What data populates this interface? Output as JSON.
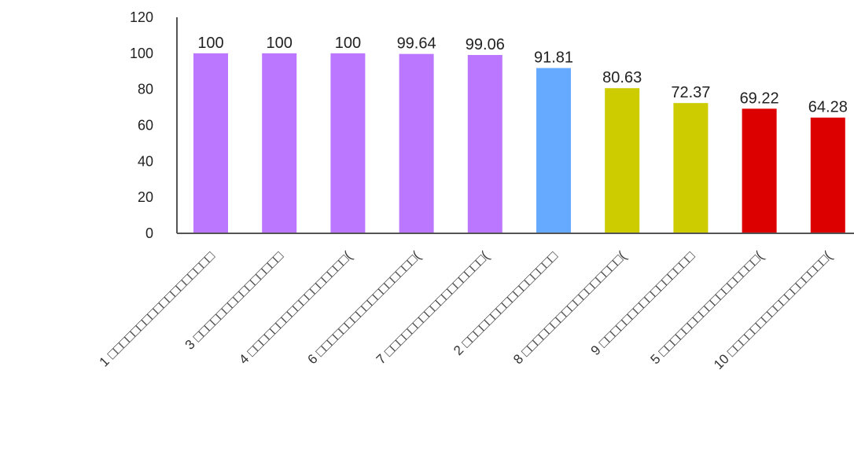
{
  "chart_data": {
    "type": "bar",
    "title": "",
    "xlabel": "",
    "ylabel": "",
    "ylim": [
      0,
      120
    ],
    "yticks": [
      0,
      20,
      40,
      60,
      80,
      100,
      120
    ],
    "grid": false,
    "legend": "none",
    "categories": [
      "1 □□□□□□□□□□□□□□□□□□",
      "3 □□□□□□□□□□□□□□□",
      "4 □□□□□□□□□□□□□□□□□(",
      "6 □□□□□□□□□□□□□□□□□(",
      "7 □□□□□□□□□□□□□□□□□(",
      "2 □□□□□□□□□□□□□□□□",
      "8 □□□□□□□□□□□□□□□□□(",
      "9 □□□□□□□□□□□□□□□□",
      "5 □□□□□□□□□□□□□□□□□(",
      "10 □□□□□□□□□□□□□□□□□("
    ],
    "values": [
      100,
      100,
      100,
      99.64,
      99.06,
      91.81,
      80.63,
      72.37,
      69.22,
      64.28
    ],
    "value_labels": [
      "100",
      "100",
      "100",
      "99.64",
      "99.06",
      "91.81",
      "80.63",
      "72.37",
      "69.22",
      "64.28"
    ],
    "colors": [
      "#bb77ff",
      "#bb77ff",
      "#bb77ff",
      "#bb77ff",
      "#bb77ff",
      "#66aaff",
      "#cccc00",
      "#cccc00",
      "#dd0000",
      "#dd0000"
    ],
    "axis_color": "#555555"
  }
}
